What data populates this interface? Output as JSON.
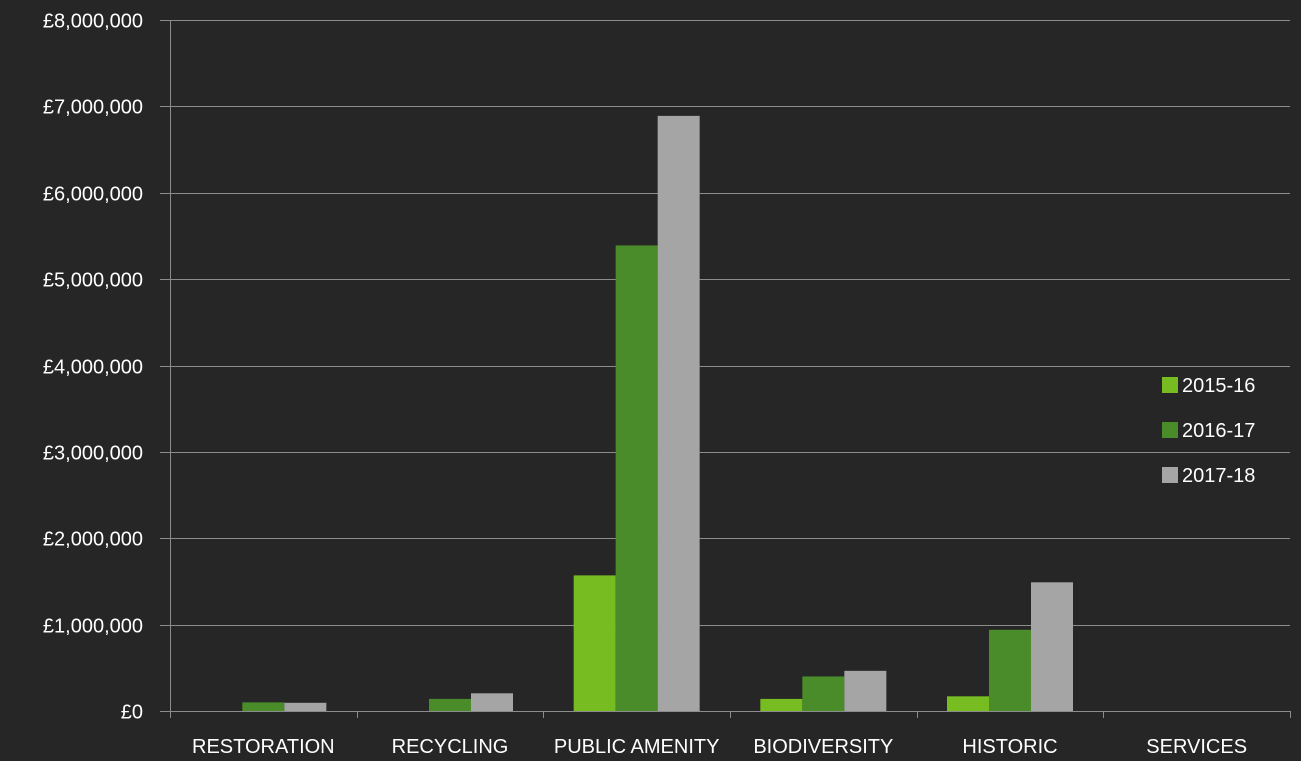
{
  "chart_data": {
    "type": "bar",
    "title": "",
    "xlabel": "",
    "ylabel": "",
    "categories": [
      "RESTORATION",
      "RECYCLING",
      "PUBLIC AMENITY",
      "BIODIVERSITY",
      "HISTORIC",
      "SERVICES"
    ],
    "series": [
      {
        "name": "2015-16",
        "color": "#77bc21",
        "values": [
          0,
          0,
          1570000,
          140000,
          170000,
          0
        ]
      },
      {
        "name": "2016-17",
        "color": "#4a8c2a",
        "values": [
          100000,
          140000,
          5390000,
          400000,
          940000,
          0
        ]
      },
      {
        "name": "2017-18",
        "color": "#a5a5a5",
        "values": [
          95000,
          205000,
          6890000,
          465000,
          1490000,
          0
        ]
      }
    ],
    "ylim": [
      0,
      8000000
    ],
    "y_ticks": [
      0,
      1000000,
      2000000,
      3000000,
      4000000,
      5000000,
      6000000,
      7000000,
      8000000
    ],
    "y_tick_labels": [
      "£0",
      "£1,000,000",
      "£2,000,000",
      "£3,000,000",
      "£4,000,000",
      "£5,000,000",
      "£6,000,000",
      "£7,000,000",
      "£8,000,000"
    ],
    "grid": true,
    "legend_position": "right",
    "colors": {
      "background": "#262626",
      "gridline": "#8c8c8c",
      "axis": "#8c8c8c",
      "text": "#ffffff"
    }
  }
}
